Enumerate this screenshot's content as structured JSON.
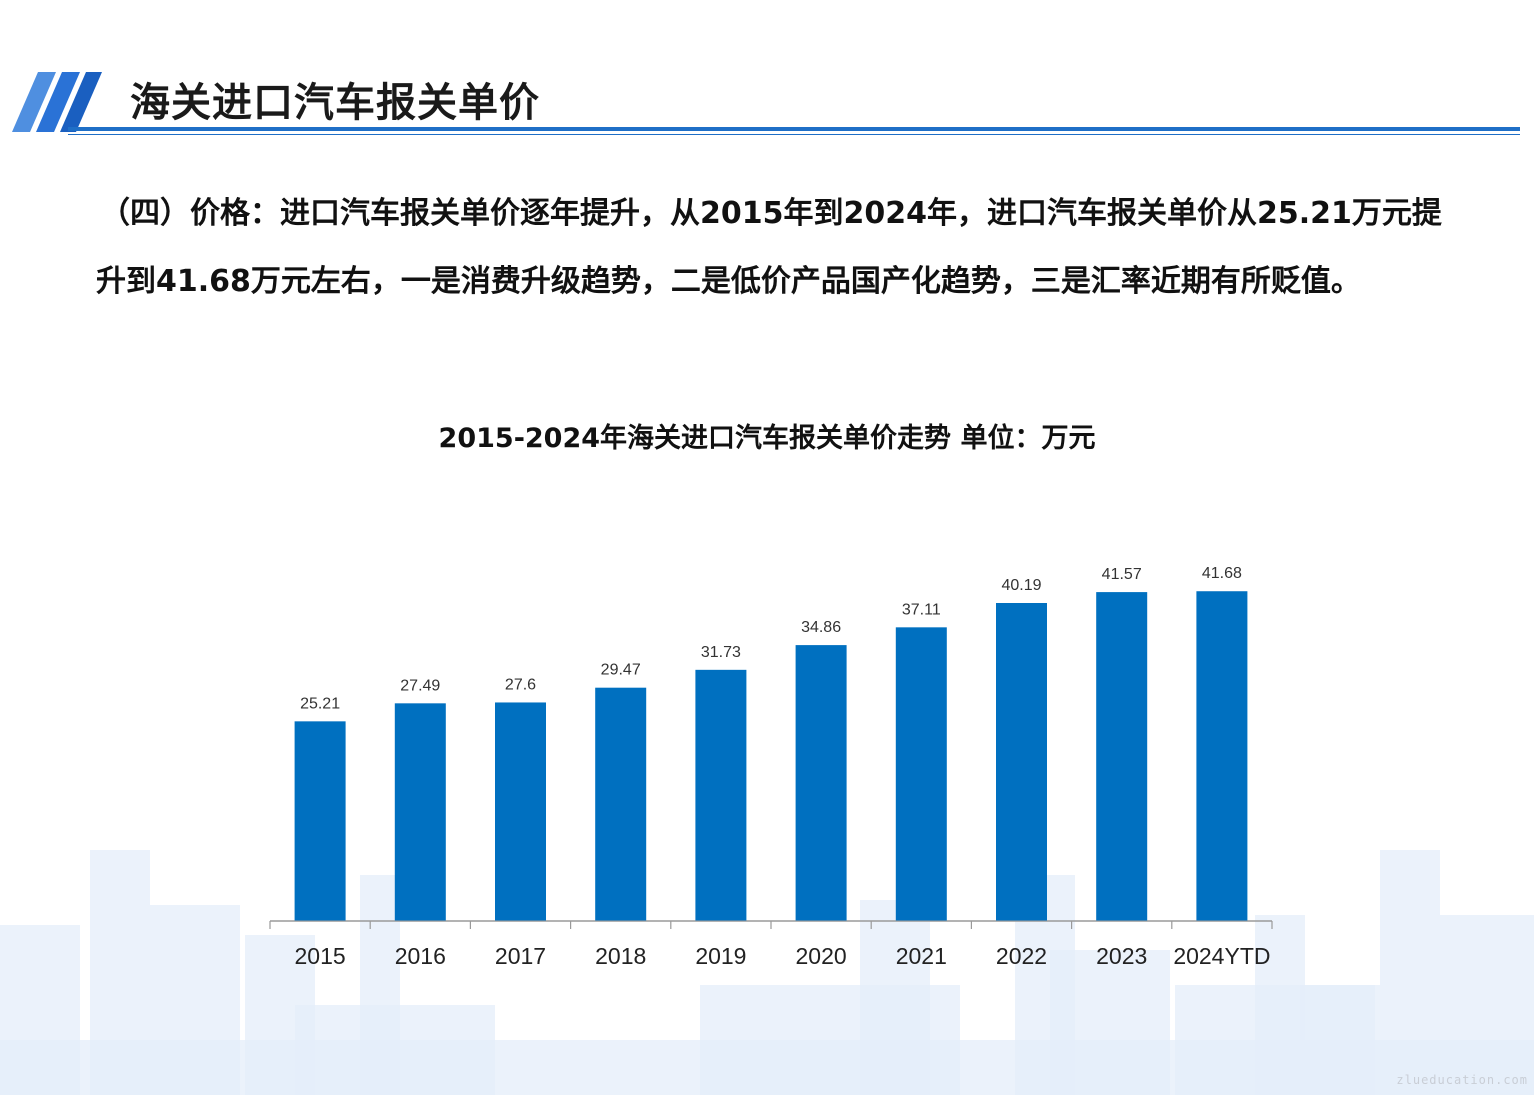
{
  "header": {
    "title": "海关进口汽车报关单价"
  },
  "intro_text": "（四）价格：进口汽车报关单价逐年提升，从2015年到2024年，进口汽车报关单价从25.21万元提升到41.68万元左右，一是消费升级趋势，二是低价产品国产化趋势，三是汇率近期有所贬值。",
  "chart_data": {
    "type": "bar",
    "title": "2015-2024年海关进口汽车报关单价走势  单位：万元",
    "categories": [
      "2015",
      "2016",
      "2017",
      "2018",
      "2019",
      "2020",
      "2021",
      "2022",
      "2023",
      "2024YTD"
    ],
    "values": [
      25.21,
      27.49,
      27.6,
      29.47,
      31.73,
      34.86,
      37.11,
      40.19,
      41.57,
      41.68
    ],
    "data_labels": [
      "25.21",
      "27.49",
      "27.6",
      "29.47",
      "31.73",
      "34.86",
      "37.11",
      "40.19",
      "41.57",
      "41.68"
    ],
    "xlabel": "",
    "ylabel": "",
    "ylim": [
      0,
      50
    ],
    "grid": false,
    "legend": "none",
    "bar_color": "#0070c0"
  },
  "colors": {
    "accent": "#1f6fc7",
    "skyline": "#e4eef9"
  },
  "watermark": "zlueducation.com"
}
